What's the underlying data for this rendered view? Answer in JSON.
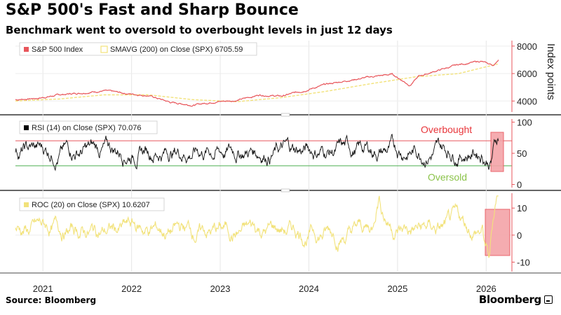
{
  "header": {
    "title": "S&P 500's Fast and Sharp Bounce",
    "subtitle": "Benchmark went to oversold to overbought levels in just 12 days"
  },
  "footer": {
    "source": "Source: Bloomberg",
    "brand": "Bloomberg"
  },
  "chart_data": [
    {
      "type": "line",
      "panel": "price",
      "legend": [
        {
          "label": "S&P 500 Index",
          "color": "#e8565b"
        },
        {
          "label": "SMAVG (200)  on Close (SPX) 6705.59",
          "color": "#f2e27a"
        }
      ],
      "ylabel": "Index points",
      "yticks": [
        4000,
        6000,
        8000
      ],
      "ylim": [
        3200,
        8400
      ],
      "series": [
        {
          "name": "S&P 500 Index",
          "color": "#e8565b",
          "x": [
            2020.75,
            2021.0,
            2021.25,
            2021.5,
            2021.75,
            2022.0,
            2022.25,
            2022.5,
            2022.75,
            2023.0,
            2023.25,
            2023.5,
            2023.75,
            2024.0,
            2024.25,
            2024.5,
            2024.75,
            2025.0,
            2025.2,
            2025.3,
            2025.5,
            2025.75,
            2025.9,
            2026.0,
            2026.08,
            2026.15,
            2026.2
          ],
          "y": [
            4100,
            4200,
            4450,
            4600,
            4750,
            4550,
            4400,
            3900,
            3700,
            3950,
            4050,
            4450,
            4350,
            4750,
            5200,
            5500,
            5750,
            5950,
            5150,
            5800,
            6200,
            6650,
            6800,
            6900,
            6700,
            6600,
            7050
          ]
        },
        {
          "name": "SMAVG (200)",
          "color": "#f2e27a",
          "x": [
            2020.75,
            2021.25,
            2021.75,
            2022.25,
            2022.75,
            2023.25,
            2023.75,
            2024.25,
            2024.75,
            2025.25,
            2025.75,
            2026.0,
            2026.2
          ],
          "y": [
            4000,
            4150,
            4450,
            4450,
            4100,
            3950,
            4250,
            4700,
            5250,
            5750,
            6000,
            6400,
            6705.59
          ]
        }
      ]
    },
    {
      "type": "line",
      "panel": "rsi",
      "legend": [
        {
          "label": "RSI (14)  on Close (SPX) 70.076",
          "color": "#000000"
        }
      ],
      "yticks": [
        0,
        50,
        100
      ],
      "ylim": [
        -5,
        105
      ],
      "reference_lines": [
        {
          "value": 70,
          "color": "#e8565b"
        },
        {
          "value": 30,
          "color": "#4caf50"
        }
      ],
      "annotations": [
        {
          "text": "Overbought",
          "color": "#e8363b"
        },
        {
          "text": "Oversold",
          "color": "#8bc34a"
        }
      ],
      "last_value": 70.076
    },
    {
      "type": "line",
      "panel": "roc",
      "legend": [
        {
          "label": "ROC (20)  on Close (SPX) 10.6207",
          "color": "#f2e27a"
        }
      ],
      "yticks": [
        -10,
        0,
        10
      ],
      "ylim": [
        -13.5,
        15.5
      ],
      "last_value": 10.6207
    }
  ],
  "x_axis": {
    "ticks": [
      "2021",
      "2022",
      "2023",
      "2024",
      "2025",
      "2026"
    ]
  }
}
